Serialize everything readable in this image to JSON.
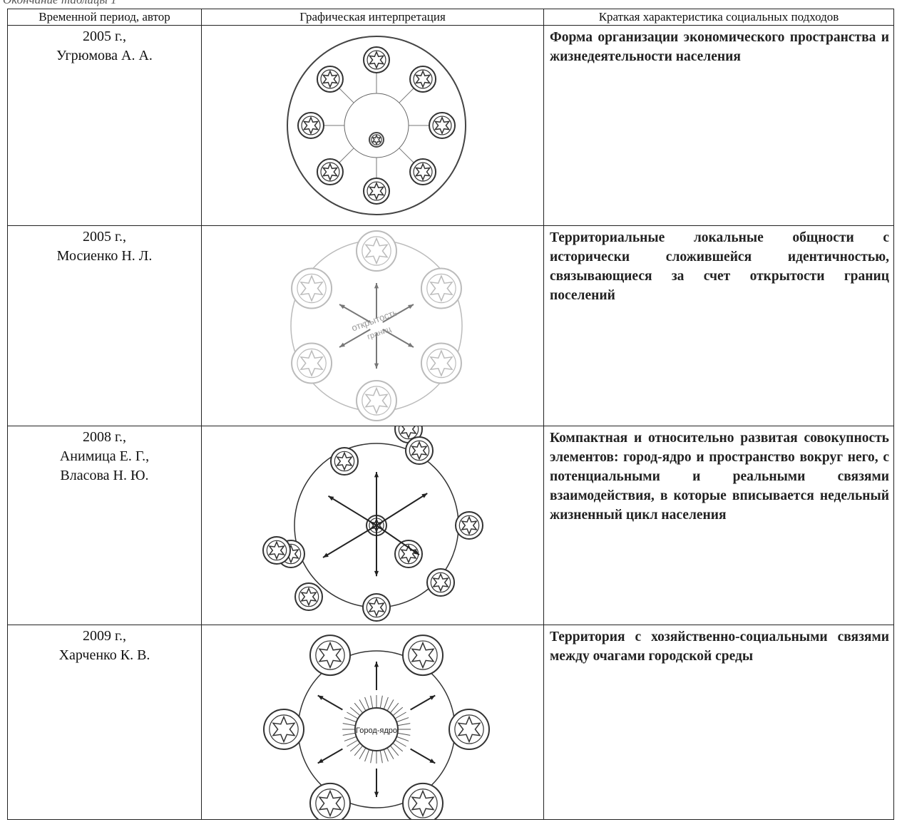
{
  "caption": "Окончание таблицы 1",
  "table": {
    "header": [
      "Временной период, автор",
      "Графическая интерпретация",
      "Краткая характеристика социальных подходов"
    ],
    "rows": [
      {
        "author_lines": [
          "2005 г.,",
          "Угрюмова А. А."
        ],
        "diagram_labels": [],
        "description": "Форма организации экономического пространства и жизнедеятельности населения"
      },
      {
        "author_lines": [
          "2005 г.,",
          "Мосиенко Н. Л."
        ],
        "diagram_labels": [
          "открытость",
          "границ"
        ],
        "description": "Территориальные локальные общности с исторически сложившейся идентичностью, связывающиеся за счет открытости границ поселений"
      },
      {
        "author_lines": [
          "2008 г.,",
          "Анимица Е. Г.,",
          "Власова Н. Ю."
        ],
        "diagram_labels": [],
        "description": "Компактная и относительно развитая совокупность элементов: город-ядро и пространство вокруг него, с потенциальными и реальными связями взаимодействия, в которые вписывается недельный жизненный цикл населения"
      },
      {
        "author_lines": [
          "2009 г.,",
          "Харченко К. В."
        ],
        "diagram_labels": [
          "Город-ядро"
        ],
        "description": "Территория с хозяйственно-социальными связями между очагами городской среды"
      }
    ]
  }
}
